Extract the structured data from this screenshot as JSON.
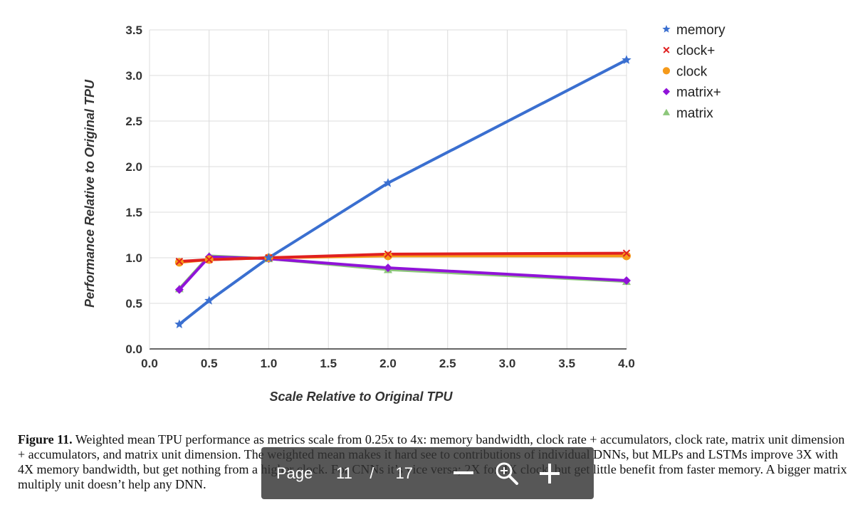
{
  "chart_data": {
    "type": "line",
    "title": "",
    "xlabel": "Scale Relative to Original TPU",
    "ylabel": "Performance Relative to Original TPU",
    "xlim": [
      0,
      4
    ],
    "ylim": [
      0,
      3.5
    ],
    "x_ticks": [
      "0.0",
      "0.5",
      "1.0",
      "1.5",
      "2.0",
      "2.5",
      "3.0",
      "3.5",
      "4.0"
    ],
    "y_ticks": [
      "0.0",
      "0.5",
      "1.0",
      "1.5",
      "2.0",
      "2.5",
      "3.0",
      "3.5"
    ],
    "x": [
      0.25,
      0.5,
      1.0,
      2.0,
      4.0
    ],
    "grid": true,
    "legend_position": "top-right",
    "series": [
      {
        "name": "memory",
        "color": "#3a6fd0",
        "marker": "star",
        "values": [
          0.27,
          0.53,
          1.0,
          1.82,
          3.17
        ]
      },
      {
        "name": "clock+",
        "color": "#e02020",
        "marker": "x",
        "values": [
          0.96,
          0.98,
          1.0,
          1.04,
          1.05
        ]
      },
      {
        "name": "clock",
        "color": "#f59a1a",
        "marker": "circle",
        "values": [
          0.95,
          0.98,
          1.0,
          1.02,
          1.02
        ]
      },
      {
        "name": "matrix+",
        "color": "#9013d8",
        "marker": "diamond",
        "values": [
          0.65,
          1.01,
          0.99,
          0.89,
          0.75
        ]
      },
      {
        "name": "matrix",
        "color": "#8dc77b",
        "marker": "triangle",
        "values": [
          0.66,
          1.02,
          0.99,
          0.87,
          0.74
        ]
      }
    ]
  },
  "caption": {
    "label": "Figure 11.",
    "text": " Weighted mean TPU performance as metrics scale from 0.25x to 4x: memory bandwidth, clock rate + accumulators, clock rate, matrix unit dimension + accumulators, and matrix unit dimension. The weighted mean makes it hard see to contributions of individual DNNs, but  MLPs and LSTMs improve 3X with 4X memory bandwidth, but get nothing from a higher clock. For CNNs it’s vice versa; 2X for 4X clock, but get little benefit from faster memory. A bigger matrix multiply unit doesn’t help any DNN."
  },
  "toolbar": {
    "page_label": "Page",
    "current_page": "11",
    "separator": "/",
    "total_pages": "17",
    "icons": [
      "zoom-out-icon",
      "zoom-in-icon",
      "plus-icon"
    ]
  }
}
